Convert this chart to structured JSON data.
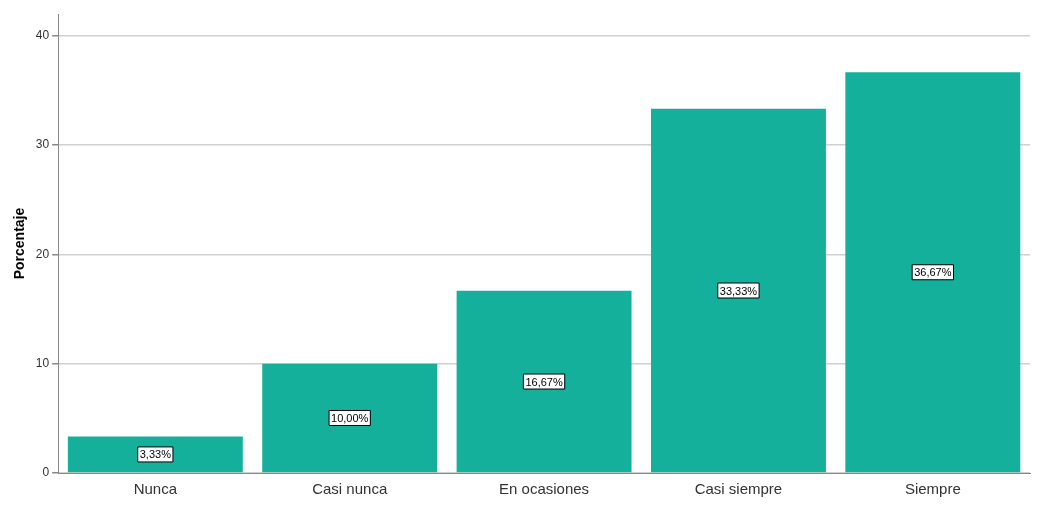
{
  "chart_data": {
    "type": "bar",
    "ylabel": "Porcentaje",
    "categories": [
      "Nunca",
      "Casi nunca",
      "En ocasiones",
      "Casi siempre",
      "Siempre"
    ],
    "values": [
      3.33,
      10.0,
      16.67,
      33.33,
      36.67
    ],
    "value_labels": [
      "3,33%",
      "10,00%",
      "16,67%",
      "33,33%",
      "36,67%"
    ],
    "color": "#14b09b",
    "ylim": [
      0,
      42
    ],
    "yticks": [
      0,
      10,
      20,
      30,
      40
    ],
    "grid": "y"
  }
}
